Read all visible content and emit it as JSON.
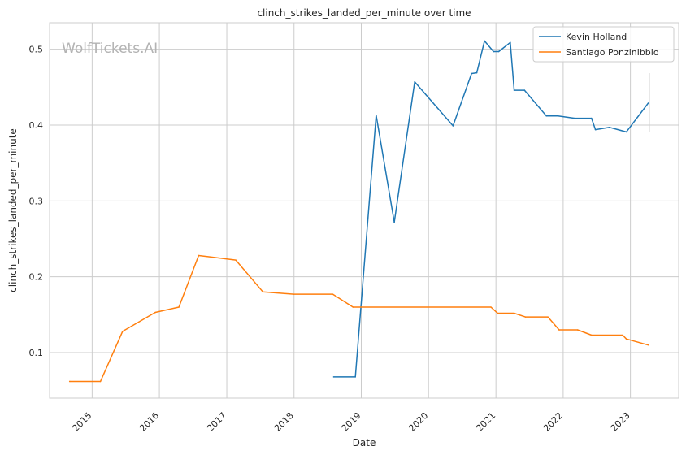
{
  "chart_data": {
    "type": "line",
    "title": "clinch_strikes_landed_per_minute over time",
    "xlabel": "Date",
    "ylabel": "clinch_strikes_landed_per_minute",
    "watermark": "WolfTickets.AI",
    "xlim": [
      "2014-05-15",
      "2023-09-20"
    ],
    "ylim": [
      0.04,
      0.535
    ],
    "x_ticks": [
      "2015",
      "2016",
      "2017",
      "2018",
      "2019",
      "2020",
      "2021",
      "2022",
      "2023"
    ],
    "y_ticks": [
      "0.1",
      "0.2",
      "0.3",
      "0.4",
      "0.5"
    ],
    "grid": true,
    "legend_position": "top-right",
    "series": [
      {
        "name": "Kevin Holland",
        "color": "#1f77b4",
        "points": [
          [
            "2018-08-04",
            0.068
          ],
          [
            "2018-11-30",
            0.068
          ],
          [
            "2019-03-23",
            0.413
          ],
          [
            "2019-06-29",
            0.272
          ],
          [
            "2019-10-18",
            0.457
          ],
          [
            "2020-05-13",
            0.399
          ],
          [
            "2020-08-22",
            0.468
          ],
          [
            "2020-09-19",
            0.469
          ],
          [
            "2020-10-31",
            0.511
          ],
          [
            "2020-12-19",
            0.497
          ],
          [
            "2021-01-16",
            0.497
          ],
          [
            "2021-03-20",
            0.509
          ],
          [
            "2021-04-10",
            0.446
          ],
          [
            "2021-06-05",
            0.446
          ],
          [
            "2021-10-02",
            0.412
          ],
          [
            "2021-12-04",
            0.412
          ],
          [
            "2022-03-05",
            0.409
          ],
          [
            "2022-06-04",
            0.409
          ],
          [
            "2022-06-25",
            0.394
          ],
          [
            "2022-09-10",
            0.397
          ],
          [
            "2022-12-10",
            0.391
          ],
          [
            "2023-04-08",
            0.429
          ]
        ]
      },
      {
        "name": "Santiago Ponzinibbio",
        "color": "#ff7f0e",
        "points": [
          [
            "2014-09-01",
            0.062
          ],
          [
            "2015-02-15",
            0.062
          ],
          [
            "2015-06-15",
            0.128
          ],
          [
            "2015-12-10",
            0.153
          ],
          [
            "2016-04-16",
            0.16
          ],
          [
            "2016-08-01",
            0.228
          ],
          [
            "2017-02-19",
            0.222
          ],
          [
            "2017-07-16",
            0.18
          ],
          [
            "2017-12-30",
            0.177
          ],
          [
            "2018-07-30",
            0.177
          ],
          [
            "2018-11-17",
            0.16
          ],
          [
            "2020-12-05",
            0.16
          ],
          [
            "2021-01-10",
            0.152
          ],
          [
            "2021-04-10",
            0.152
          ],
          [
            "2021-06-10",
            0.147
          ],
          [
            "2021-10-10",
            0.147
          ],
          [
            "2021-12-10",
            0.13
          ],
          [
            "2022-03-20",
            0.13
          ],
          [
            "2022-06-04",
            0.123
          ],
          [
            "2022-11-20",
            0.123
          ],
          [
            "2022-12-10",
            0.118
          ],
          [
            "2023-04-08",
            0.11
          ]
        ]
      }
    ]
  }
}
